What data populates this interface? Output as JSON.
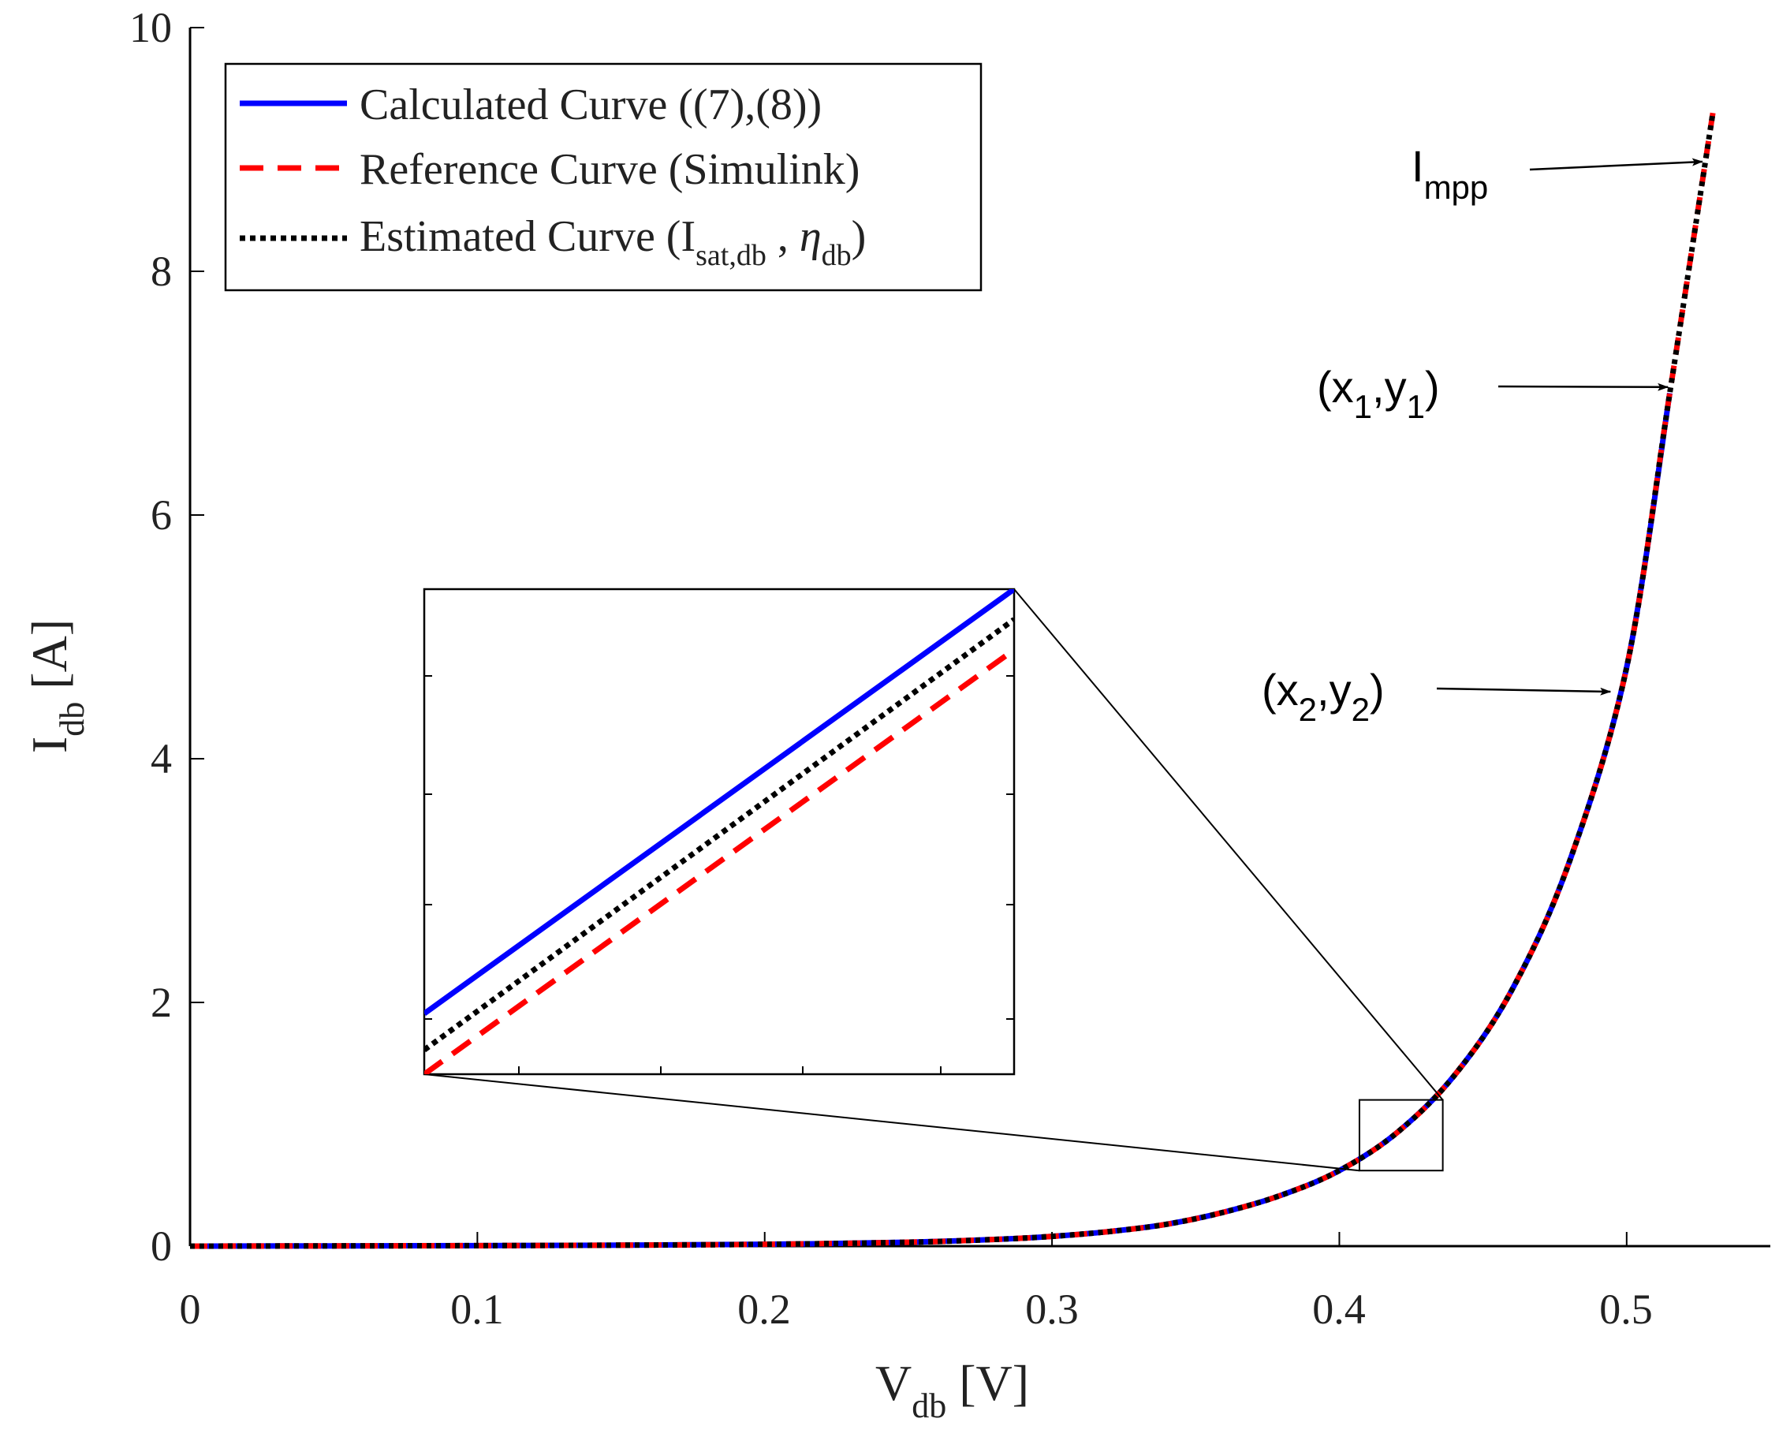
{
  "chart_data": {
    "type": "line",
    "xlabel": {
      "main": "V",
      "sub": "db",
      "unit": " [V]"
    },
    "ylabel": {
      "main": "I",
      "sub": "db",
      "unit": " [A]"
    },
    "xlim": [
      0,
      0.55
    ],
    "ylim": [
      0,
      10
    ],
    "xticks": [
      0,
      0.1,
      0.2,
      0.3,
      0.4,
      0.5
    ],
    "xtick_labels": [
      "0",
      "0.1",
      "0.2",
      "0.3",
      "0.4",
      "0.5"
    ],
    "yticks": [
      0,
      2,
      4,
      6,
      8,
      10
    ],
    "ytick_labels": [
      "0",
      "2",
      "4",
      "6",
      "8",
      "10"
    ],
    "grid": false,
    "legend_position": "top-left",
    "series": [
      {
        "name": "Calculated Curve ((7),(8))",
        "color": "#0000ff",
        "style": "solid",
        "x": [
          0,
          0.05,
          0.1,
          0.15,
          0.2,
          0.25,
          0.28,
          0.3,
          0.32,
          0.34,
          0.36,
          0.38,
          0.4,
          0.42,
          0.44,
          0.46,
          0.48,
          0.5,
          0.515
        ],
        "y": [
          0.0,
          0.002,
          0.004,
          0.008,
          0.015,
          0.032,
          0.055,
          0.08,
          0.12,
          0.18,
          0.28,
          0.42,
          0.62,
          0.93,
          1.4,
          2.1,
          3.15,
          4.75,
          7.0
        ]
      },
      {
        "name": "Reference Curve (Simulink)",
        "color": "#ff0000",
        "style": "dashed",
        "x": [
          0,
          0.05,
          0.1,
          0.15,
          0.2,
          0.25,
          0.28,
          0.3,
          0.32,
          0.34,
          0.36,
          0.38,
          0.4,
          0.42,
          0.44,
          0.46,
          0.48,
          0.5,
          0.515,
          0.53
        ],
        "y": [
          0.0,
          0.002,
          0.004,
          0.008,
          0.015,
          0.032,
          0.055,
          0.08,
          0.12,
          0.18,
          0.28,
          0.42,
          0.62,
          0.93,
          1.4,
          2.1,
          3.15,
          4.75,
          7.0,
          9.3
        ]
      },
      {
        "name": "Estimated Curve",
        "color": "#000000",
        "style": "dotted",
        "x": [
          0,
          0.05,
          0.1,
          0.15,
          0.2,
          0.25,
          0.28,
          0.3,
          0.32,
          0.34,
          0.36,
          0.38,
          0.4,
          0.42,
          0.44,
          0.46,
          0.48,
          0.5,
          0.515,
          0.53
        ],
        "y": [
          0.0,
          0.002,
          0.004,
          0.008,
          0.015,
          0.032,
          0.055,
          0.08,
          0.12,
          0.18,
          0.28,
          0.42,
          0.62,
          0.93,
          1.4,
          2.1,
          3.15,
          4.75,
          7.0,
          9.3
        ]
      }
    ],
    "legend": [
      {
        "label": "Calculated Curve ((7),(8))",
        "color": "#0000ff",
        "style": "solid"
      },
      {
        "label": "Reference Curve (Simulink)",
        "color": "#ff0000",
        "style": "dashed"
      },
      {
        "label_main": "Estimated Curve (I",
        "label_sub1": "sat,db",
        "label_mid": " , ",
        "label_eta": "η",
        "label_sub2": "db",
        "label_end": ")",
        "color": "#000000",
        "style": "dotted"
      }
    ],
    "zoom_box": {
      "xlim": [
        0.407,
        0.436
      ],
      "ylim": [
        0.62,
        1.2
      ]
    },
    "inset": {
      "series_y": {
        "blue": [
          1.9,
          5.4
        ],
        "black": [
          1.6,
          5.15
        ],
        "red": [
          1.4,
          4.9
        ]
      },
      "ylim": [
        1.4,
        5.4
      ]
    },
    "annotations": [
      {
        "name": "impp",
        "main": "I",
        "sub": "mpp",
        "target": [
          0.528,
          8.9
        ]
      },
      {
        "name": "x1y1",
        "parts": [
          "(x",
          "1",
          ",y",
          "1",
          ")"
        ],
        "target": [
          0.516,
          7.05
        ]
      },
      {
        "name": "x2y2",
        "parts": [
          "(x",
          "2",
          ",y",
          "2",
          ")"
        ],
        "target": [
          0.496,
          4.55
        ]
      }
    ]
  }
}
